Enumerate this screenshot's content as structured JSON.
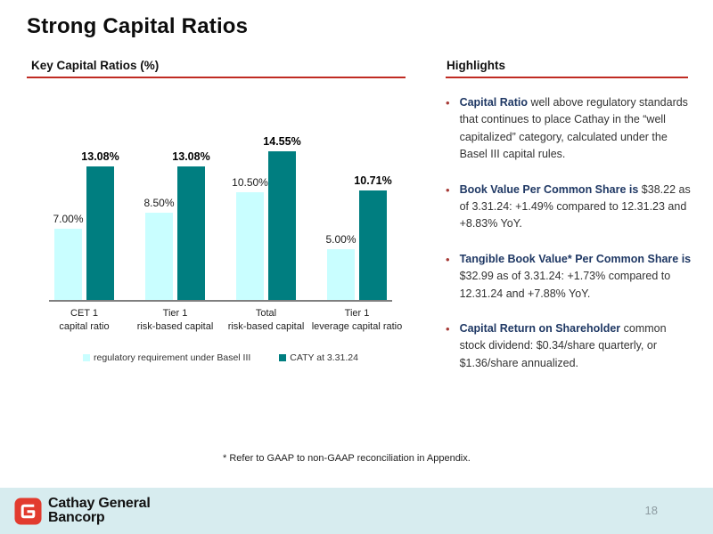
{
  "slide": {
    "title": "Strong Capital Ratios",
    "page_number": "18",
    "footnote": "* Refer to GAAP to non-GAAP reconciliation in Appendix."
  },
  "left_panel": {
    "header": "Key Capital Ratios (%)"
  },
  "right_panel": {
    "header": "Highlights",
    "bullets": [
      {
        "lead": "Capital Ratio",
        "text": " well above regulatory standards that continues to place Cathay in the “well capitalized” category, calculated under the Basel III capital rules."
      },
      {
        "lead": "Book Value Per Common Share is",
        "text": " $38.22 as of 3.31.24: +1.49% compared to 12.31.23 and +8.83% YoY."
      },
      {
        "lead": "Tangible Book Value* Per Common Share is",
        "text": " $32.99 as of 3.31.24: +1.73% compared to 12.31.24 and +7.88% YoY."
      },
      {
        "lead": "Capital Return on Shareholder",
        "text": " common stock dividend: $0.34/share quarterly, or $1.36/share annualized."
      }
    ]
  },
  "footer": {
    "company_line1": "Cathay General",
    "company_line2": "Bancorp"
  },
  "colors": {
    "accent_red": "#c02b23",
    "navy_lead": "#1f3864",
    "teal": "#007e80",
    "light_cyan": "#c9feff",
    "footer_bg": "#d7ecef",
    "logo_red": "#e23b2e"
  },
  "chart_data": {
    "type": "bar",
    "title": "Key Capital Ratios (%)",
    "categories": [
      [
        "CET 1",
        "capital ratio"
      ],
      [
        "Tier 1",
        "risk-based capital"
      ],
      [
        "Total",
        "risk-based capital"
      ],
      [
        "Tier 1",
        "leverage capital ratio"
      ]
    ],
    "series": [
      {
        "name": "regulatory requirement under Basel III",
        "color": "#c9feff",
        "values": [
          7.0,
          8.5,
          10.5,
          5.0
        ],
        "labels": [
          "7.00%",
          "8.50%",
          "10.50%",
          "5.00%"
        ]
      },
      {
        "name": "CATY at 3.31.24",
        "color": "#007e80",
        "values": [
          13.08,
          13.08,
          14.55,
          10.71
        ],
        "labels": [
          "13.08%",
          "13.08%",
          "14.55%",
          "10.71%"
        ]
      }
    ],
    "ylim": [
      0,
      16
    ],
    "grid": false,
    "legend_position": "bottom",
    "value_axis_hidden": true
  }
}
